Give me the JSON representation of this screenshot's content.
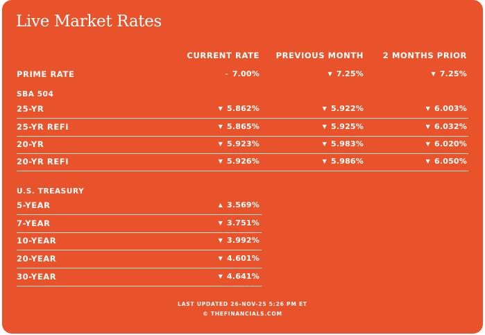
{
  "title": "Live Market Rates",
  "columns": {
    "current": "CURRENT RATE",
    "previous": "PREVIOUS MONTH",
    "two_prior": "2 MONTHS PRIOR"
  },
  "prime": {
    "label": "PRIME RATE",
    "current": {
      "arrow": "–",
      "value": "7.00%"
    },
    "previous": {
      "arrow": "▼",
      "value": "7.25%"
    },
    "two_prior": {
      "arrow": "▼",
      "value": "7.25%"
    }
  },
  "sba": {
    "heading": "SBA 504",
    "rows": [
      {
        "label": "25-YR",
        "current": {
          "arrow": "▼",
          "value": "5.862%"
        },
        "previous": {
          "arrow": "▼",
          "value": "5.922%"
        },
        "two_prior": {
          "arrow": "▼",
          "value": "6.003%"
        }
      },
      {
        "label": "25-YR REFI",
        "current": {
          "arrow": "▼",
          "value": "5.865%"
        },
        "previous": {
          "arrow": "▼",
          "value": "5.925%"
        },
        "two_prior": {
          "arrow": "▼",
          "value": "6.032%"
        }
      },
      {
        "label": "20-YR",
        "current": {
          "arrow": "▼",
          "value": "5.923%"
        },
        "previous": {
          "arrow": "▼",
          "value": "5.983%"
        },
        "two_prior": {
          "arrow": "▼",
          "value": "6.020%"
        }
      },
      {
        "label": "20-YR REFI",
        "current": {
          "arrow": "▼",
          "value": "5.926%"
        },
        "previous": {
          "arrow": "▼",
          "value": "5.986%"
        },
        "two_prior": {
          "arrow": "▼",
          "value": "6.050%"
        }
      }
    ]
  },
  "treasury": {
    "heading": "U.S. TREASURY",
    "rows": [
      {
        "label": "5-YEAR",
        "current": {
          "arrow": "▲",
          "value": "3.569%"
        }
      },
      {
        "label": "7-YEAR",
        "current": {
          "arrow": "▼",
          "value": "3.751%"
        }
      },
      {
        "label": "10-YEAR",
        "current": {
          "arrow": "▼",
          "value": "3.992%"
        }
      },
      {
        "label": "20-YEAR",
        "current": {
          "arrow": "▼",
          "value": "4.601%"
        }
      },
      {
        "label": "30-YEAR",
        "current": {
          "arrow": "▼",
          "value": "4.641%"
        }
      }
    ]
  },
  "footer": {
    "updated": "LAST UPDATED 26-NOV-25 5:26 PM ET",
    "copyright": "© THEFINANCIALS.COM"
  },
  "colors": {
    "background": "#e8532b",
    "text": "#ffffff"
  },
  "icons": {
    "down": "down-triangle-icon",
    "up": "up-triangle-icon",
    "flat": "dash-icon"
  }
}
